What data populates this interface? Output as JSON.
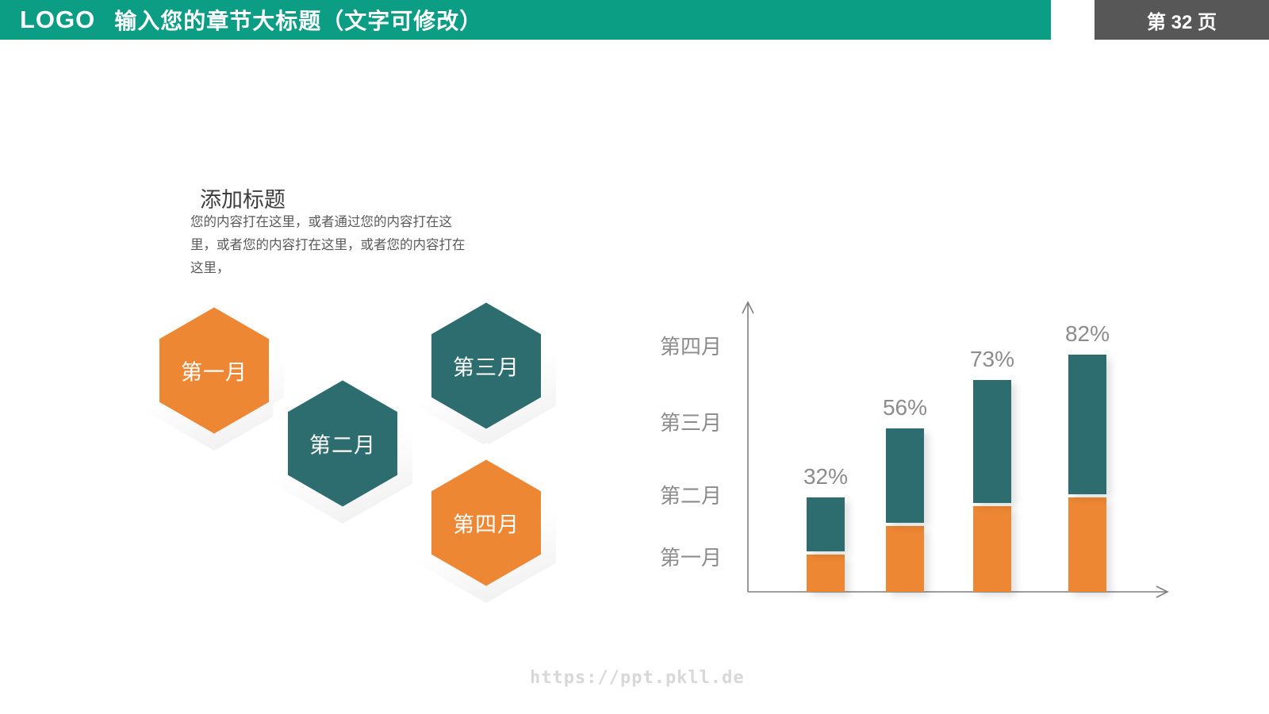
{
  "slide": {
    "header": {
      "logo": "LOGO",
      "title": "输入您的章节大标题（文字可修改）",
      "page_label": "第 32 页"
    },
    "intro": {
      "heading": "添加标题",
      "body": "您的内容打在这里，或者通过您的内容打在这里，或者您的内容打在这里，或者您的内容打在这里，"
    },
    "hexagons": {
      "items": [
        {
          "label": "第一月",
          "color": "#ED8733"
        },
        {
          "label": "第二月",
          "color": "#2E6D6F"
        },
        {
          "label": "第三月",
          "color": "#ED8733"
        },
        {
          "label": "第四月",
          "color": "#2E6D6F"
        }
      ]
    },
    "watermark": "https://ppt.pkll.de"
  },
  "chart_data": {
    "type": "bar",
    "orientation": "vertical",
    "stacked": true,
    "grid": false,
    "legend": "none",
    "bar_labels": [
      "32%",
      "56%",
      "73%",
      "82%"
    ],
    "totals_percent": [
      32,
      56,
      73,
      82
    ],
    "series": [
      {
        "name": "bottom-segment",
        "color": "#ED8733",
        "values_percent": [
          13,
          23,
          30,
          33
        ]
      },
      {
        "name": "top-segment",
        "color": "#2E6D6F",
        "values_percent": [
          19,
          33,
          43,
          49
        ]
      }
    ],
    "y_axis_labels": [
      "第四月",
      "第三月",
      "第二月",
      "第一月"
    ],
    "ylim_percent": [
      0,
      100
    ]
  },
  "colors": {
    "header_teal": "#0C9E85",
    "page_box_gray": "#575757",
    "orange": "#ED8733",
    "teal": "#2E6D6F",
    "heading_text": "#3D3D3D",
    "body_text": "#595959",
    "chart_label_gray": "#8C8C8C",
    "axis_gray": "#7F7F7F",
    "watermark_gray": "#D8D8D8"
  }
}
